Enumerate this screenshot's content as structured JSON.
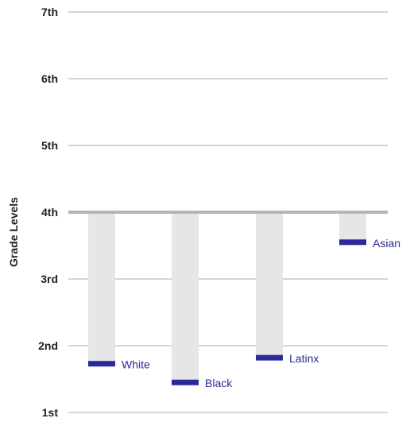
{
  "chart_data": {
    "type": "bar",
    "ylabel": "Grade Levels",
    "xlabel": "",
    "title": "",
    "grid": true,
    "legend": "none",
    "ylim": [
      1,
      7
    ],
    "yticks": [
      1,
      2,
      3,
      4,
      5,
      6,
      7
    ],
    "ytick_labels": [
      "1st",
      "2nd",
      "3rd",
      "4th",
      "5th",
      "6th",
      "7th"
    ],
    "baseline": 4,
    "categories": [
      "White",
      "Black",
      "Latinx",
      "Asian"
    ],
    "values": [
      1.73,
      1.45,
      1.82,
      3.55
    ],
    "colors": {
      "bar": "#e6e6e6",
      "marker": "#2b2a9c",
      "label": "#2b2a9c",
      "grid": "#d4d4d4",
      "baseline": "#b5b5b5",
      "text": "#222222"
    }
  }
}
